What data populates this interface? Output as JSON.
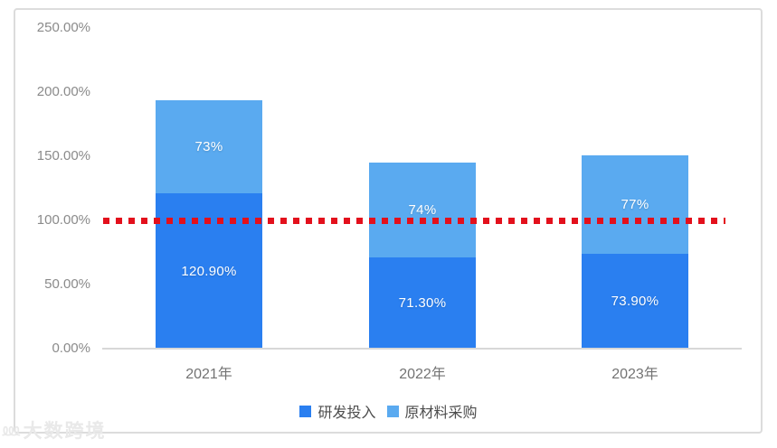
{
  "chart_data": {
    "type": "bar",
    "stacked": true,
    "title": "",
    "categories": [
      "2021年",
      "2022年",
      "2023年"
    ],
    "series": [
      {
        "name": "研发投入",
        "color": "#2a7ff0",
        "values": [
          120.9,
          71.3,
          73.9
        ],
        "data_labels": [
          "120.90%",
          "71.30%",
          "73.90%"
        ]
      },
      {
        "name": "原材料采购",
        "color": "#5aaaf0",
        "values": [
          73,
          74,
          77
        ],
        "data_labels": [
          "73%",
          "74%",
          "77%"
        ]
      }
    ],
    "y_axis": {
      "min": 0,
      "max": 250,
      "tick_step": 50,
      "tick_labels": [
        "0.00%",
        "50.00%",
        "100.00%",
        "150.00%",
        "200.00%",
        "250.00%"
      ]
    },
    "x_axis": {
      "tick_labels": [
        "2021年",
        "2022年",
        "2023年"
      ]
    },
    "reference_line": {
      "value": 100,
      "color": "#e3101c",
      "style": "dotted"
    },
    "legend_position": "bottom",
    "grid": false
  },
  "colors": {
    "series_dark_blue": "#2a7ff0",
    "series_light_blue": "#5aaaf0",
    "reference_red": "#e3101c",
    "panel_border": "#dcdcdc",
    "axis_text": "#8a8a8a"
  },
  "watermark": {
    "text": "大数跨境",
    "logo_glyph": "⅏"
  }
}
